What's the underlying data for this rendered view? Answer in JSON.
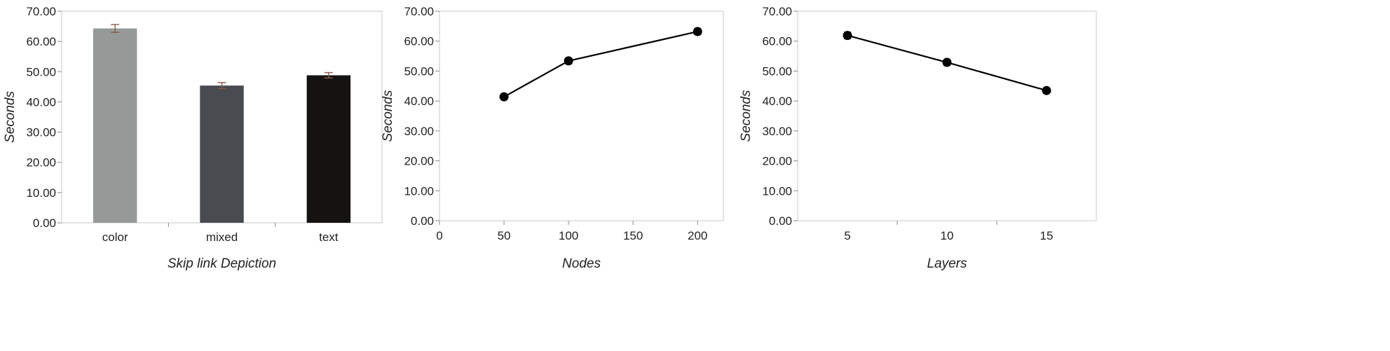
{
  "chart_data": [
    {
      "type": "bar",
      "xlabel": "Skip link Depiction",
      "ylabel": "Seconds",
      "ylim": [
        0,
        70
      ],
      "yticks": [
        "0.00",
        "10.00",
        "20.00",
        "30.00",
        "40.00",
        "50.00",
        "60.00",
        "70.00"
      ],
      "categories": [
        "color",
        "mixed",
        "text"
      ],
      "values": [
        64.3,
        45.4,
        48.8
      ],
      "errors": [
        1.3,
        1.0,
        0.9
      ],
      "colors": [
        "#959a99",
        "#484c50",
        "#141312"
      ],
      "grid": false
    },
    {
      "type": "line",
      "xlabel": "Nodes",
      "ylabel": "Seconds",
      "ylim": [
        0,
        70
      ],
      "xlim": [
        0,
        220
      ],
      "yticks": [
        "0.00",
        "10.00",
        "20.00",
        "30.00",
        "40.00",
        "50.00",
        "60.00",
        "70.00"
      ],
      "xticks": [
        "0",
        "50",
        "100",
        "150",
        "200"
      ],
      "x": [
        50,
        100,
        200
      ],
      "values": [
        41.4,
        53.4,
        63.2
      ],
      "errors": [
        0.8,
        1.0,
        1.0
      ],
      "color": "#000000",
      "grid": false
    },
    {
      "type": "line",
      "xlabel": "Layers",
      "ylabel": "Seconds",
      "ylim": [
        0,
        70
      ],
      "yticks": [
        "0.00",
        "10.00",
        "20.00",
        "30.00",
        "40.00",
        "50.00",
        "60.00",
        "70.00"
      ],
      "categories": [
        "5",
        "10",
        "15"
      ],
      "values": [
        61.9,
        52.9,
        43.5
      ],
      "errors": [
        1.1,
        1.0,
        0.6
      ],
      "color": "#000000",
      "grid": false
    }
  ]
}
